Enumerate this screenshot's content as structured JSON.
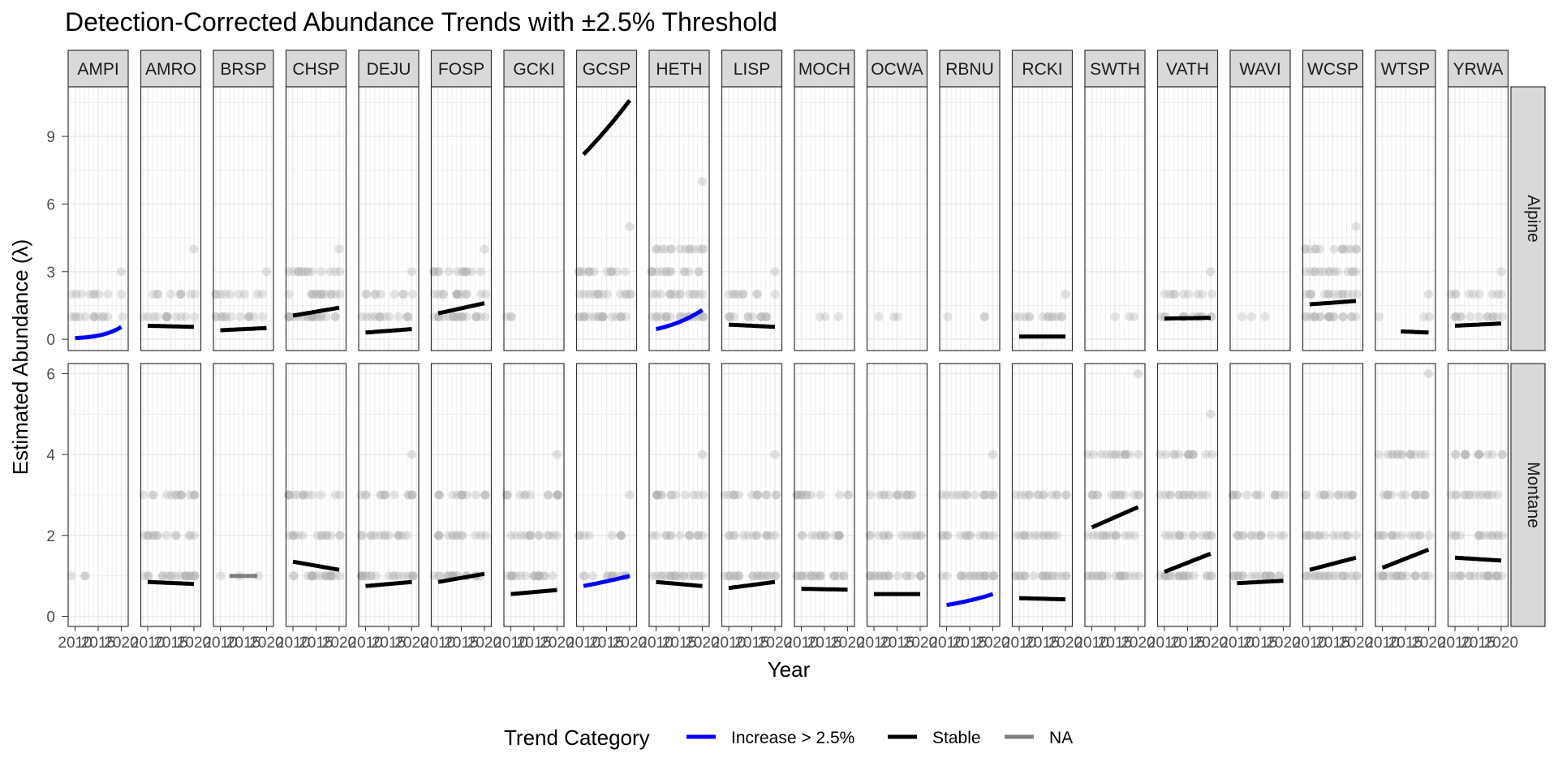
{
  "chart_data": {
    "type": "scatter",
    "title": "Detection-Corrected Abundance Trends with ±2.5% Threshold",
    "xlabel": "Year",
    "ylabel": "Estimated Abundance (λ)",
    "species": [
      "AMPI",
      "AMRO",
      "BRSP",
      "CHSP",
      "DEJU",
      "FOSP",
      "GCKI",
      "GCSP",
      "HETH",
      "LISP",
      "MOCH",
      "OCWA",
      "RBNU",
      "RCKI",
      "SWTH",
      "VATH",
      "WAVI",
      "WCSP",
      "WTSP",
      "YRWA"
    ],
    "habitats": [
      "Alpine",
      "Montane"
    ],
    "x_ticks": [
      2010,
      2015,
      2020
    ],
    "x_tick_labels": [
      "2010",
      "2015",
      "2020"
    ],
    "xlim": [
      2008.5,
      2021.5
    ],
    "panels": [
      {
        "habitat": "Alpine",
        "ylim": [
          -0.5,
          11.2
        ],
        "y_ticks": [
          0,
          3,
          6,
          9
        ]
      },
      {
        "habitat": "Montane",
        "ylim": [
          -0.25,
          6.25
        ],
        "y_ticks": [
          0,
          2,
          4,
          6
        ]
      }
    ],
    "legend": {
      "title": "Trend Category",
      "placement": "bottom",
      "items": [
        {
          "label": "Increase > 2.5%",
          "color": "#0000FF"
        },
        {
          "label": "Stable",
          "color": "#000000"
        },
        {
          "label": "NA",
          "color": "#7F7F7F"
        }
      ]
    },
    "point_color": "#B3B3B3",
    "grid": true,
    "strip_fill": "#D9D9D9",
    "trends": [
      {
        "species": "AMPI",
        "habitat": "Alpine",
        "category": "Increase > 2.5%",
        "x": [
          2010,
          2020
        ],
        "y": [
          0.05,
          0.55
        ]
      },
      {
        "species": "AMRO",
        "habitat": "Alpine",
        "category": "Stable",
        "x": [
          2010,
          2020
        ],
        "y": [
          0.6,
          0.55
        ]
      },
      {
        "species": "BRSP",
        "habitat": "Alpine",
        "category": "Stable",
        "x": [
          2010,
          2020
        ],
        "y": [
          0.4,
          0.5
        ]
      },
      {
        "species": "CHSP",
        "habitat": "Alpine",
        "category": "Stable",
        "x": [
          2010,
          2020
        ],
        "y": [
          1.05,
          1.4
        ]
      },
      {
        "species": "DEJU",
        "habitat": "Alpine",
        "category": "Stable",
        "x": [
          2010,
          2020
        ],
        "y": [
          0.3,
          0.45
        ]
      },
      {
        "species": "FOSP",
        "habitat": "Alpine",
        "category": "Stable",
        "x": [
          2010,
          2020
        ],
        "y": [
          1.15,
          1.6
        ]
      },
      {
        "species": "GCSP",
        "habitat": "Alpine",
        "category": "Stable",
        "x": [
          2010,
          2020
        ],
        "y": [
          8.2,
          10.6
        ]
      },
      {
        "species": "HETH",
        "habitat": "Alpine",
        "category": "Increase > 2.5%",
        "x": [
          2010,
          2020
        ],
        "y": [
          0.45,
          1.3
        ]
      },
      {
        "species": "LISP",
        "habitat": "Alpine",
        "category": "Stable",
        "x": [
          2010,
          2020
        ],
        "y": [
          0.65,
          0.55
        ]
      },
      {
        "species": "RCKI",
        "habitat": "Alpine",
        "category": "Stable",
        "x": [
          2010,
          2020
        ],
        "y": [
          0.12,
          0.12
        ]
      },
      {
        "species": "VATH",
        "habitat": "Alpine",
        "category": "Stable",
        "x": [
          2010,
          2020
        ],
        "y": [
          0.92,
          0.95
        ]
      },
      {
        "species": "WCSP",
        "habitat": "Alpine",
        "category": "Stable",
        "x": [
          2010,
          2020
        ],
        "y": [
          1.55,
          1.7
        ]
      },
      {
        "species": "WTSP",
        "habitat": "Alpine",
        "category": "Stable",
        "x": [
          2014,
          2020
        ],
        "y": [
          0.35,
          0.3
        ]
      },
      {
        "species": "YRWA",
        "habitat": "Alpine",
        "category": "Stable",
        "x": [
          2010,
          2020
        ],
        "y": [
          0.6,
          0.7
        ]
      },
      {
        "species": "AMRO",
        "habitat": "Montane",
        "category": "Stable",
        "x": [
          2010,
          2020
        ],
        "y": [
          0.85,
          0.8
        ]
      },
      {
        "species": "BRSP",
        "habitat": "Montane",
        "category": "NA",
        "x": [
          2012,
          2018
        ],
        "y": [
          1.0,
          1.0
        ]
      },
      {
        "species": "CHSP",
        "habitat": "Montane",
        "category": "Stable",
        "x": [
          2010,
          2020
        ],
        "y": [
          1.35,
          1.15
        ]
      },
      {
        "species": "DEJU",
        "habitat": "Montane",
        "category": "Stable",
        "x": [
          2010,
          2020
        ],
        "y": [
          0.75,
          0.85
        ]
      },
      {
        "species": "FOSP",
        "habitat": "Montane",
        "category": "Stable",
        "x": [
          2010,
          2020
        ],
        "y": [
          0.85,
          1.05
        ]
      },
      {
        "species": "GCKI",
        "habitat": "Montane",
        "category": "Stable",
        "x": [
          2010,
          2020
        ],
        "y": [
          0.55,
          0.65
        ]
      },
      {
        "species": "GCSP",
        "habitat": "Montane",
        "category": "Increase > 2.5%",
        "x": [
          2010,
          2020
        ],
        "y": [
          0.75,
          1.0
        ]
      },
      {
        "species": "HETH",
        "habitat": "Montane",
        "category": "Stable",
        "x": [
          2010,
          2020
        ],
        "y": [
          0.85,
          0.75
        ]
      },
      {
        "species": "LISP",
        "habitat": "Montane",
        "category": "Stable",
        "x": [
          2010,
          2020
        ],
        "y": [
          0.7,
          0.85
        ]
      },
      {
        "species": "MOCH",
        "habitat": "Montane",
        "category": "Stable",
        "x": [
          2010,
          2020
        ],
        "y": [
          0.68,
          0.66
        ]
      },
      {
        "species": "OCWA",
        "habitat": "Montane",
        "category": "Stable",
        "x": [
          2010,
          2020
        ],
        "y": [
          0.55,
          0.55
        ]
      },
      {
        "species": "RBNU",
        "habitat": "Montane",
        "category": "Increase > 2.5%",
        "x": [
          2010,
          2020
        ],
        "y": [
          0.28,
          0.55
        ]
      },
      {
        "species": "RCKI",
        "habitat": "Montane",
        "category": "Stable",
        "x": [
          2010,
          2020
        ],
        "y": [
          0.45,
          0.42
        ]
      },
      {
        "species": "SWTH",
        "habitat": "Montane",
        "category": "Stable",
        "x": [
          2010,
          2020
        ],
        "y": [
          2.2,
          2.7
        ]
      },
      {
        "species": "VATH",
        "habitat": "Montane",
        "category": "Stable",
        "x": [
          2010,
          2020
        ],
        "y": [
          1.1,
          1.55
        ]
      },
      {
        "species": "WAVI",
        "habitat": "Montane",
        "category": "Stable",
        "x": [
          2010,
          2020
        ],
        "y": [
          0.82,
          0.88
        ]
      },
      {
        "species": "WCSP",
        "habitat": "Montane",
        "category": "Stable",
        "x": [
          2010,
          2020
        ],
        "y": [
          1.15,
          1.45
        ]
      },
      {
        "species": "WTSP",
        "habitat": "Montane",
        "category": "Stable",
        "x": [
          2010,
          2020
        ],
        "y": [
          1.2,
          1.65
        ]
      },
      {
        "species": "YRWA",
        "habitat": "Montane",
        "category": "Stable",
        "x": [
          2010,
          2020
        ],
        "y": [
          1.45,
          1.38
        ]
      }
    ],
    "observations": [
      {
        "species": "AMPI",
        "habitat": "Alpine",
        "y": [
          1,
          2
        ],
        "max": 3,
        "density": "med"
      },
      {
        "species": "AMRO",
        "habitat": "Alpine",
        "y": [
          1,
          2
        ],
        "max": 4,
        "density": "med"
      },
      {
        "species": "BRSP",
        "habitat": "Alpine",
        "y": [
          1,
          2
        ],
        "max": 3,
        "density": "med"
      },
      {
        "species": "CHSP",
        "habitat": "Alpine",
        "y": [
          1,
          2,
          3
        ],
        "max": 4,
        "density": "high"
      },
      {
        "species": "DEJU",
        "habitat": "Alpine",
        "y": [
          1,
          2
        ],
        "max": 3,
        "density": "med"
      },
      {
        "species": "FOSP",
        "habitat": "Alpine",
        "y": [
          1,
          2,
          3
        ],
        "max": 4,
        "density": "high"
      },
      {
        "species": "GCKI",
        "habitat": "Alpine",
        "y": [
          1
        ],
        "max": 1,
        "density": "low"
      },
      {
        "species": "GCSP",
        "habitat": "Alpine",
        "y": [
          1,
          2,
          3
        ],
        "max": 5,
        "density": "high"
      },
      {
        "species": "HETH",
        "habitat": "Alpine",
        "y": [
          1,
          2,
          3,
          4
        ],
        "max": 7,
        "density": "high"
      },
      {
        "species": "LISP",
        "habitat": "Alpine",
        "y": [
          1,
          2
        ],
        "max": 3,
        "density": "med"
      },
      {
        "species": "MOCH",
        "habitat": "Alpine",
        "y": [
          1
        ],
        "max": 1,
        "density": "low"
      },
      {
        "species": "OCWA",
        "habitat": "Alpine",
        "y": [
          1
        ],
        "max": 1,
        "density": "low"
      },
      {
        "species": "RBNU",
        "habitat": "Alpine",
        "y": [
          1
        ],
        "max": 1,
        "density": "low"
      },
      {
        "species": "RCKI",
        "habitat": "Alpine",
        "y": [
          1
        ],
        "max": 2,
        "density": "med"
      },
      {
        "species": "SWTH",
        "habitat": "Alpine",
        "y": [
          1
        ],
        "max": 1,
        "density": "low"
      },
      {
        "species": "VATH",
        "habitat": "Alpine",
        "y": [
          1,
          2
        ],
        "max": 3,
        "density": "med"
      },
      {
        "species": "WAVI",
        "habitat": "Alpine",
        "y": [
          1
        ],
        "max": 1,
        "density": "low"
      },
      {
        "species": "WCSP",
        "habitat": "Alpine",
        "y": [
          1,
          2,
          3,
          4
        ],
        "max": 5,
        "density": "high"
      },
      {
        "species": "WTSP",
        "habitat": "Alpine",
        "y": [
          1
        ],
        "max": 2,
        "density": "low"
      },
      {
        "species": "YRWA",
        "habitat": "Alpine",
        "y": [
          1,
          2
        ],
        "max": 3,
        "density": "med"
      },
      {
        "species": "AMPI",
        "habitat": "Montane",
        "y": [
          1
        ],
        "max": 1,
        "density": "low"
      },
      {
        "species": "AMRO",
        "habitat": "Montane",
        "y": [
          1,
          2,
          3
        ],
        "max": 3,
        "density": "high"
      },
      {
        "species": "BRSP",
        "habitat": "Montane",
        "y": [
          1
        ],
        "max": 1,
        "density": "low"
      },
      {
        "species": "CHSP",
        "habitat": "Montane",
        "y": [
          1,
          2,
          3
        ],
        "max": 3,
        "density": "high"
      },
      {
        "species": "DEJU",
        "habitat": "Montane",
        "y": [
          1,
          2,
          3
        ],
        "max": 4,
        "density": "high"
      },
      {
        "species": "FOSP",
        "habitat": "Montane",
        "y": [
          1,
          2,
          3
        ],
        "max": 3,
        "density": "high"
      },
      {
        "species": "GCKI",
        "habitat": "Montane",
        "y": [
          1,
          2,
          3
        ],
        "max": 4,
        "density": "high"
      },
      {
        "species": "GCSP",
        "habitat": "Montane",
        "y": [
          1,
          2
        ],
        "max": 3,
        "density": "med"
      },
      {
        "species": "HETH",
        "habitat": "Montane",
        "y": [
          1,
          2,
          3
        ],
        "max": 4,
        "density": "high"
      },
      {
        "species": "LISP",
        "habitat": "Montane",
        "y": [
          1,
          2,
          3
        ],
        "max": 4,
        "density": "high"
      },
      {
        "species": "MOCH",
        "habitat": "Montane",
        "y": [
          1,
          2,
          3
        ],
        "max": 3,
        "density": "high"
      },
      {
        "species": "OCWA",
        "habitat": "Montane",
        "y": [
          1,
          2,
          3
        ],
        "max": 3,
        "density": "high"
      },
      {
        "species": "RBNU",
        "habitat": "Montane",
        "y": [
          1,
          2,
          3
        ],
        "max": 4,
        "density": "high"
      },
      {
        "species": "RCKI",
        "habitat": "Montane",
        "y": [
          1,
          2,
          3
        ],
        "max": 3,
        "density": "high"
      },
      {
        "species": "SWTH",
        "habitat": "Montane",
        "y": [
          1,
          2,
          3,
          4
        ],
        "max": 6,
        "density": "high"
      },
      {
        "species": "VATH",
        "habitat": "Montane",
        "y": [
          1,
          2,
          3,
          4
        ],
        "max": 5,
        "density": "high"
      },
      {
        "species": "WAVI",
        "habitat": "Montane",
        "y": [
          1,
          2,
          3
        ],
        "max": 3,
        "density": "high"
      },
      {
        "species": "WCSP",
        "habitat": "Montane",
        "y": [
          1,
          2,
          3
        ],
        "max": 3,
        "density": "high"
      },
      {
        "species": "WTSP",
        "habitat": "Montane",
        "y": [
          1,
          2,
          3,
          4
        ],
        "max": 6,
        "density": "high"
      },
      {
        "species": "YRWA",
        "habitat": "Montane",
        "y": [
          1,
          2,
          3,
          4
        ],
        "max": 4,
        "density": "high"
      }
    ]
  }
}
